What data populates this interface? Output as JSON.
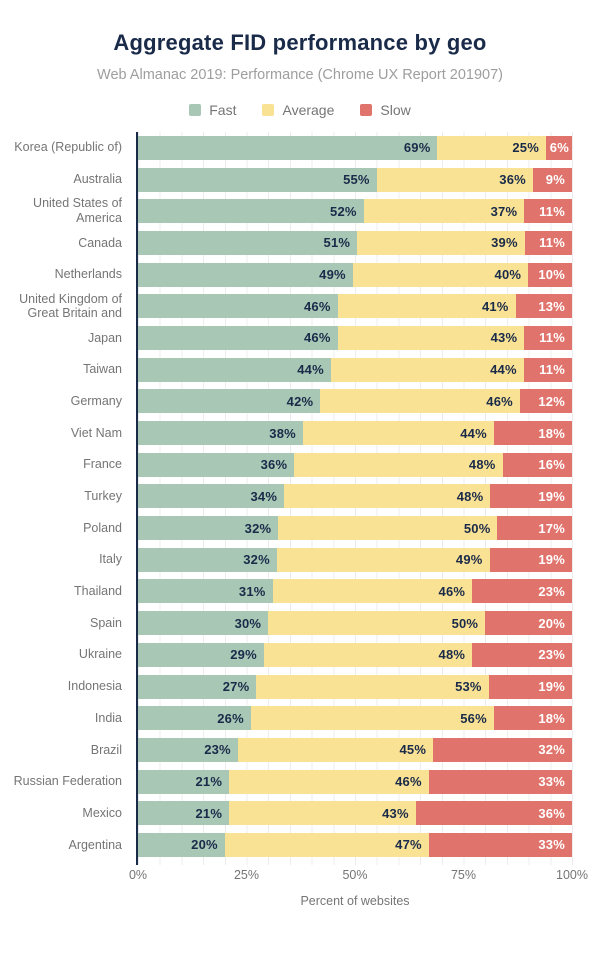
{
  "header": {
    "title": "Aggregate FID performance by geo",
    "subtitle": "Web Almanac 2019: Performance (Chrome UX Report 201907)"
  },
  "legend": {
    "items": [
      {
        "label": "Fast",
        "color": "#a8c7b5"
      },
      {
        "label": "Average",
        "color": "#fae295"
      },
      {
        "label": "Slow",
        "color": "#e0736c"
      }
    ]
  },
  "chart_data": {
    "type": "bar",
    "stacked": true,
    "orientation": "horizontal",
    "title": "Aggregate FID performance by geo",
    "subtitle": "Web Almanac 2019: Performance (Chrome UX Report 201907)",
    "xlabel": "Percent of websites",
    "ylabel": "",
    "xlim": [
      0,
      100
    ],
    "x_ticks": [
      "0%",
      "25%",
      "50%",
      "75%",
      "100%"
    ],
    "grid": true,
    "legend_position": "top",
    "value_suffix": "%",
    "categories": [
      "Korea (Republic of)",
      "Australia",
      "United States of America",
      "Canada",
      "Netherlands",
      "United Kingdom of Great Britain and",
      "Japan",
      "Taiwan",
      "Germany",
      "Viet Nam",
      "France",
      "Turkey",
      "Poland",
      "Italy",
      "Thailand",
      "Spain",
      "Ukraine",
      "Indonesia",
      "India",
      "Brazil",
      "Russian Federation",
      "Mexico",
      "Argentina"
    ],
    "series": [
      {
        "name": "Fast",
        "color": "#a8c7b5",
        "label_color": "#1a2b49",
        "values": [
          69,
          55,
          52,
          51,
          49,
          46,
          46,
          44,
          42,
          38,
          36,
          34,
          32,
          32,
          31,
          30,
          29,
          27,
          26,
          23,
          21,
          21,
          20
        ]
      },
      {
        "name": "Average",
        "color": "#fae295",
        "label_color": "#1a2b49",
        "values": [
          25,
          36,
          37,
          39,
          40,
          41,
          43,
          44,
          46,
          44,
          48,
          48,
          50,
          49,
          46,
          50,
          48,
          53,
          56,
          45,
          46,
          43,
          47
        ]
      },
      {
        "name": "Slow",
        "color": "#e0736c",
        "label_color": "#ffffff",
        "values": [
          6,
          9,
          11,
          11,
          10,
          13,
          11,
          11,
          12,
          18,
          16,
          19,
          17,
          19,
          23,
          20,
          23,
          19,
          18,
          32,
          33,
          36,
          33
        ]
      }
    ]
  },
  "colors": {
    "title": "#1a2b49",
    "axis": "#1a2b49",
    "muted_text": "#757575",
    "subtitle_text": "#9e9e9e",
    "gridline": "#ececec"
  }
}
